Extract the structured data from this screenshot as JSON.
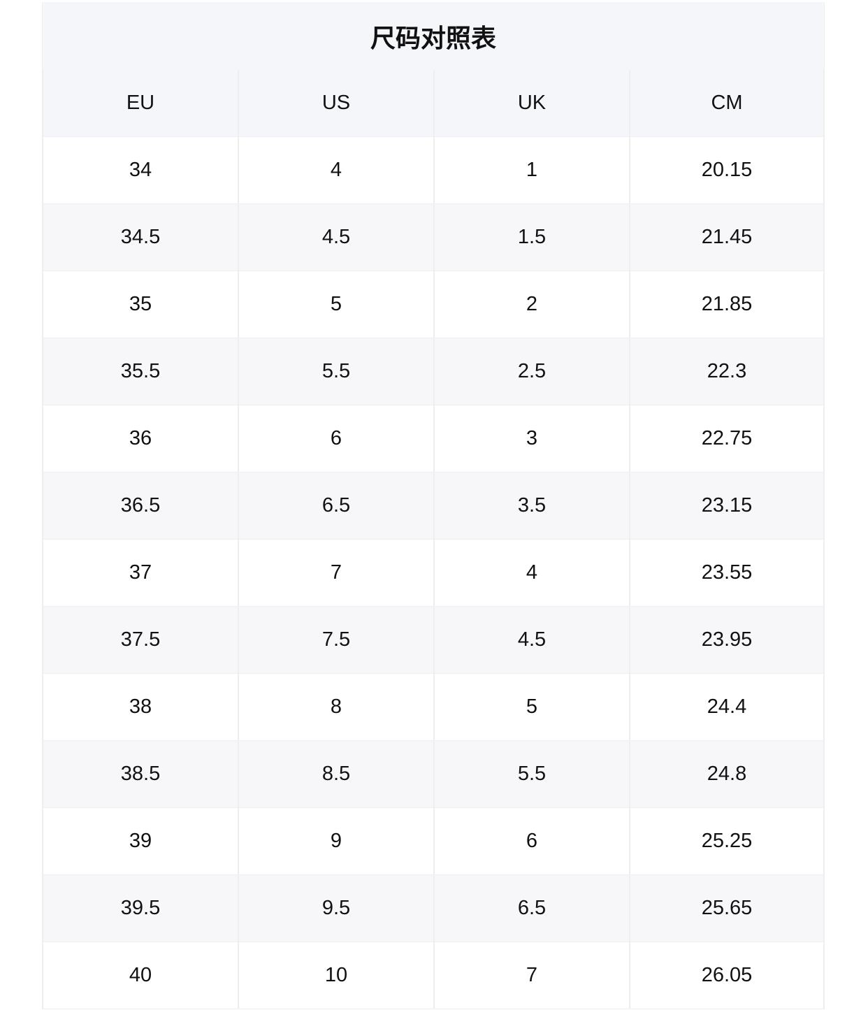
{
  "title": "尺码对照表",
  "table": {
    "header": [
      "EU",
      "US",
      "UK",
      "CM"
    ],
    "rows": [
      [
        "34",
        "4",
        "1",
        "20.15"
      ],
      [
        "34.5",
        "4.5",
        "1.5",
        "21.45"
      ],
      [
        "35",
        "5",
        "2",
        "21.85"
      ],
      [
        "35.5",
        "5.5",
        "2.5",
        "22.3"
      ],
      [
        "36",
        "6",
        "3",
        "22.75"
      ],
      [
        "36.5",
        "6.5",
        "3.5",
        "23.15"
      ],
      [
        "37",
        "7",
        "4",
        "23.55"
      ],
      [
        "37.5",
        "7.5",
        "4.5",
        "23.95"
      ],
      [
        "38",
        "8",
        "5",
        "24.4"
      ],
      [
        "38.5",
        "8.5",
        "5.5",
        "24.8"
      ],
      [
        "39",
        "9",
        "6",
        "25.25"
      ],
      [
        "39.5",
        "9.5",
        "6.5",
        "25.65"
      ],
      [
        "40",
        "10",
        "7",
        "26.05"
      ]
    ]
  }
}
